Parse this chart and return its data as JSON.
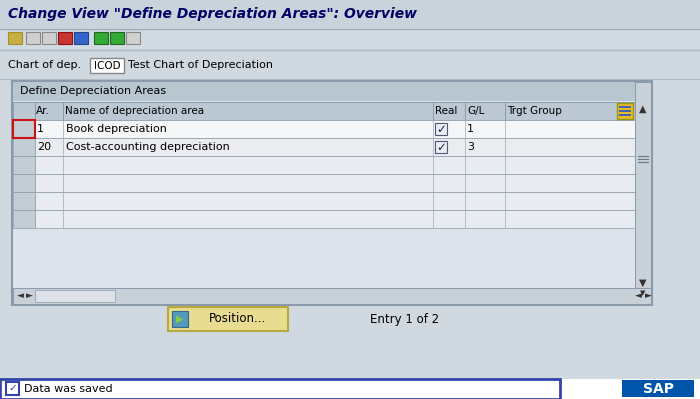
{
  "title": "Change View \"Define Depreciation Areas\": Overview",
  "bg_color": "#d0d8e0",
  "title_bar_color": "#c4cdd6",
  "toolbar_color": "#d0d8e0",
  "chart_row_color": "#d0d8e0",
  "chart_of_dep_label": "Chart of dep.",
  "chart_code": "ICOD",
  "chart_desc": "Test Chart of Depreciation",
  "section_title": "Define Depreciation Areas",
  "table_headers": [
    "Ar.",
    "Name of depreciation area",
    "Real",
    "G/L",
    "Trgt Group"
  ],
  "table_border_color": "#8899aa",
  "header_col_color": "#c0ccd8",
  "row_white": "#f8f8f8",
  "row_alt": "#eef0f4",
  "row_empty": "#eaedf2",
  "sel_cell_color": "#c8d0d8",
  "rows": [
    {
      "ar": "1",
      "name": "Book depreciation",
      "real": true,
      "gl": "1",
      "trgt": "",
      "selected": true
    },
    {
      "ar": "20",
      "name": "Cost-accounting depreciation",
      "real": true,
      "gl": "3",
      "trgt": "",
      "selected": false
    }
  ],
  "status_msg": "Data was saved",
  "entry_text": "Entry 1 of 2",
  "position_btn": "Position...",
  "sap_blue": "#0055aa"
}
